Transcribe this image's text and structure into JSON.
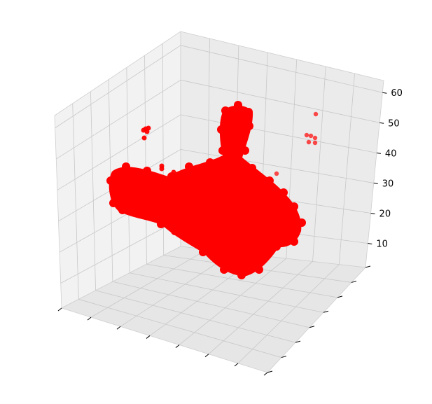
{
  "chart_data": {
    "type": "scatter",
    "projection": "3d",
    "title": "",
    "xlabel": "",
    "ylabel": "",
    "zlabel": "",
    "zlim": [
      2,
      64
    ],
    "z_ticks": [
      "10",
      "20",
      "30",
      "40",
      "50",
      "60"
    ],
    "x_tick_labels": [],
    "y_tick_labels": [],
    "grid": true,
    "marker_color": "#ff0000",
    "pane_colors": [
      "#f2f2f2",
      "#ebebeb",
      "#e6e6e6"
    ],
    "series": [
      {
        "description_of_points": [
          {
            "x": 0.9,
            "y": 0.2,
            "z": 52
          },
          {
            "x": 0.85,
            "y": 0.25,
            "z": 47
          },
          {
            "x": 0.8,
            "y": 0.3,
            "z": 44
          },
          {
            "x": 0.1,
            "y": 0.05,
            "z": 45
          },
          {
            "x": 0.2,
            "y": 0.1,
            "z": 38
          },
          {
            "x": 0.5,
            "y": 0.5,
            "z": 20
          },
          {
            "x": 0.6,
            "y": 0.6,
            "z": 15
          },
          {
            "x": 0.4,
            "y": 0.4,
            "z": 25
          },
          {
            "x": 0.2,
            "y": 0.2,
            "z": 30
          },
          {
            "x": 0.7,
            "y": 0.7,
            "z": 10
          }
        ]
      }
    ]
  }
}
